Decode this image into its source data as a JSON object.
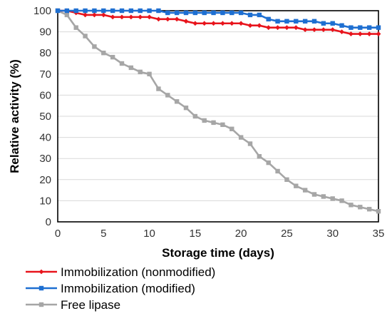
{
  "chart_data": {
    "type": "line",
    "xlabel": "Storage time (days)",
    "ylabel": "Relative activity (%)",
    "xlim": [
      0,
      35
    ],
    "ylim": [
      0,
      100
    ],
    "x_ticks": [
      0,
      5,
      10,
      15,
      20,
      25,
      30,
      35
    ],
    "y_ticks": [
      0,
      10,
      20,
      30,
      40,
      50,
      60,
      70,
      80,
      90,
      100
    ],
    "grid": "horizontal",
    "legend_position": "bottom",
    "x": [
      0,
      1,
      2,
      3,
      4,
      5,
      6,
      7,
      8,
      9,
      10,
      11,
      12,
      13,
      14,
      15,
      16,
      17,
      18,
      19,
      20,
      21,
      22,
      23,
      24,
      25,
      26,
      27,
      28,
      29,
      30,
      31,
      32,
      33,
      34,
      35
    ],
    "series": [
      {
        "name": "Immobilization (nonmodified)",
        "color": "#e8141c",
        "marker": "diamond",
        "values": [
          100,
          100,
          99,
          98,
          98,
          98,
          97,
          97,
          97,
          97,
          97,
          96,
          96,
          96,
          95,
          94,
          94,
          94,
          94,
          94,
          94,
          93,
          93,
          92,
          92,
          92,
          92,
          91,
          91,
          91,
          91,
          90,
          89,
          89,
          89,
          89
        ]
      },
      {
        "name": "Immobilization (modified)",
        "color": "#1e6fd1",
        "marker": "square",
        "values": [
          100,
          100,
          100,
          100,
          100,
          100,
          100,
          100,
          100,
          100,
          100,
          100,
          99,
          99,
          99,
          99,
          99,
          99,
          99,
          99,
          99,
          98,
          98,
          96,
          95,
          95,
          95,
          95,
          95,
          94,
          94,
          93,
          92,
          92,
          92,
          92
        ]
      },
      {
        "name": "Free lipase",
        "color": "#a6a6a6",
        "marker": "square",
        "values": [
          100,
          98,
          92,
          88,
          83,
          80,
          78,
          75,
          73,
          71,
          70,
          63,
          60,
          57,
          54,
          50,
          48,
          47,
          46,
          44,
          40,
          37,
          31,
          28,
          24,
          20,
          17,
          15,
          13,
          12,
          11,
          10,
          8,
          7,
          6,
          5
        ]
      }
    ]
  }
}
